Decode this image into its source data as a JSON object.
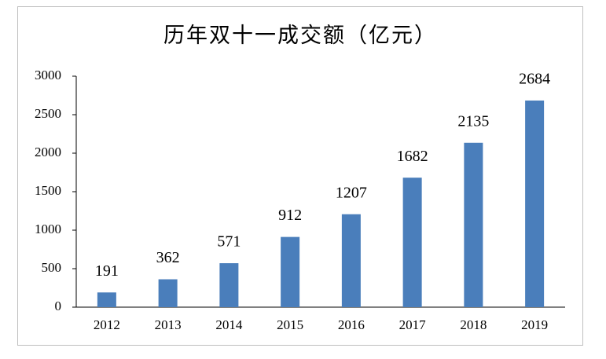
{
  "chart_data": {
    "type": "bar",
    "title": "历年双十一成交额（亿元）",
    "categories": [
      "2012",
      "2013",
      "2014",
      "2015",
      "2016",
      "2017",
      "2018",
      "2019"
    ],
    "values": [
      191,
      362,
      571,
      912,
      1207,
      1682,
      2135,
      2684
    ],
    "color": "#4a7ebb",
    "ylim": [
      0,
      3000
    ],
    "yticks": [
      0,
      500,
      1000,
      1500,
      2000,
      2500,
      3000
    ],
    "grid": false
  }
}
